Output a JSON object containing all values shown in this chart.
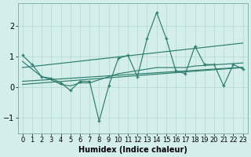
{
  "xlabel": "Humidex (Indice chaleur)",
  "x": [
    0,
    1,
    2,
    3,
    4,
    5,
    6,
    7,
    8,
    9,
    10,
    11,
    12,
    13,
    14,
    15,
    16,
    17,
    18,
    19,
    20,
    21,
    22,
    23
  ],
  "main_line": [
    1.05,
    0.75,
    0.35,
    0.3,
    0.15,
    -0.1,
    0.2,
    0.2,
    -1.1,
    0.05,
    0.95,
    1.05,
    0.35,
    1.6,
    2.45,
    1.6,
    0.55,
    0.45,
    1.35,
    0.75,
    0.75,
    0.05,
    0.75,
    0.6
  ],
  "smooth1": [
    0.85,
    0.6,
    0.35,
    0.25,
    0.1,
    0.05,
    0.15,
    0.15,
    0.25,
    0.35,
    0.45,
    0.5,
    0.55,
    0.6,
    0.65,
    0.65,
    0.65,
    0.65,
    0.7,
    0.72,
    0.74,
    0.76,
    0.78,
    0.8
  ],
  "smooth2": [
    0.2,
    0.22,
    0.24,
    0.26,
    0.28,
    0.3,
    0.32,
    0.34,
    0.36,
    0.38,
    0.4,
    0.42,
    0.44,
    0.46,
    0.48,
    0.5,
    0.52,
    0.54,
    0.56,
    0.58,
    0.6,
    0.62,
    0.64,
    0.66
  ],
  "trend1_x": [
    0,
    23
  ],
  "trend1_y": [
    0.1,
    0.65
  ],
  "trend2_x": [
    0,
    23
  ],
  "trend2_y": [
    0.65,
    1.45
  ],
  "line_color": "#2e7d6e",
  "bg_color": "#d4eeeb",
  "grid_color_major": "#b5d8d4",
  "grid_color_minor": "#c8e5e2",
  "ylim": [
    -1.5,
    2.75
  ],
  "yticks": [
    -1,
    0,
    1,
    2
  ],
  "xlim": [
    -0.5,
    23.5
  ],
  "xticks": [
    0,
    1,
    2,
    3,
    4,
    5,
    6,
    7,
    8,
    9,
    10,
    11,
    12,
    13,
    14,
    15,
    16,
    17,
    18,
    19,
    20,
    21,
    22,
    23
  ],
  "tick_fontsize": 6,
  "xlabel_fontsize": 7
}
